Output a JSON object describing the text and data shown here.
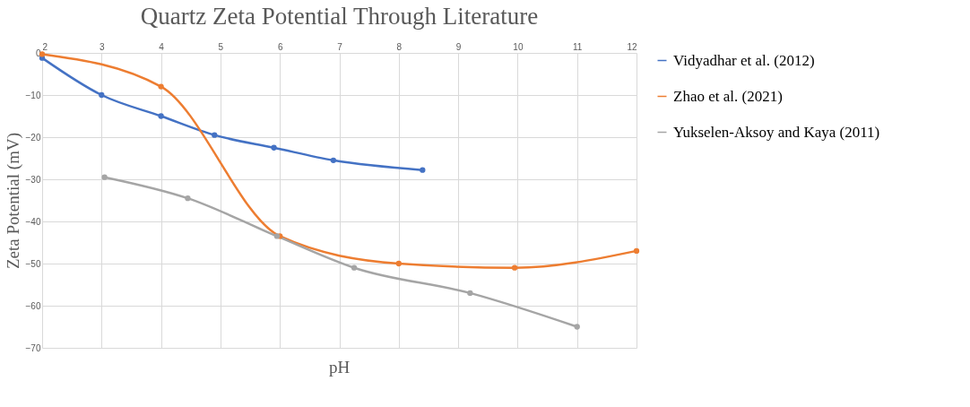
{
  "chart_data": {
    "type": "line",
    "title": "Quartz Zeta Potential Through Literature",
    "xlabel": "pH",
    "ylabel": "Zeta Potential (mV)",
    "xlim": [
      2,
      12
    ],
    "xticks": [
      2,
      3,
      4,
      5,
      6,
      7,
      8,
      9,
      10,
      11,
      12
    ],
    "ylim": [
      -70,
      0
    ],
    "yticks": [
      -70,
      -60,
      -50,
      -40,
      -30,
      -20,
      -10,
      0
    ],
    "grid": true,
    "legend": "right",
    "marker": "circle",
    "line_style": "solid",
    "series": [
      {
        "name": "Vidyadhar et al. (2012)",
        "color": "#4472c4",
        "x": [
          2,
          3,
          4,
          4.9,
          5.9,
          6.9,
          8.4
        ],
        "values": [
          -1.2,
          -10,
          -15,
          -19.5,
          -22.5,
          -25.5,
          -27.8
        ]
      },
      {
        "name": "Zhao et al. (2021)",
        "color": "#ed7d31",
        "x": [
          2,
          4,
          6,
          8,
          9.95,
          12
        ],
        "values": [
          -0.3,
          -8,
          -43.5,
          -50,
          -51,
          -47
        ]
      },
      {
        "name": "Yukselen-Aksoy and Kaya (2011)",
        "color": "#a5a5a5",
        "x": [
          3.05,
          4.45,
          5.95,
          7.25,
          9.2,
          11
        ],
        "values": [
          -29.5,
          -34.5,
          -43.5,
          -51,
          -57,
          -65
        ]
      }
    ]
  }
}
